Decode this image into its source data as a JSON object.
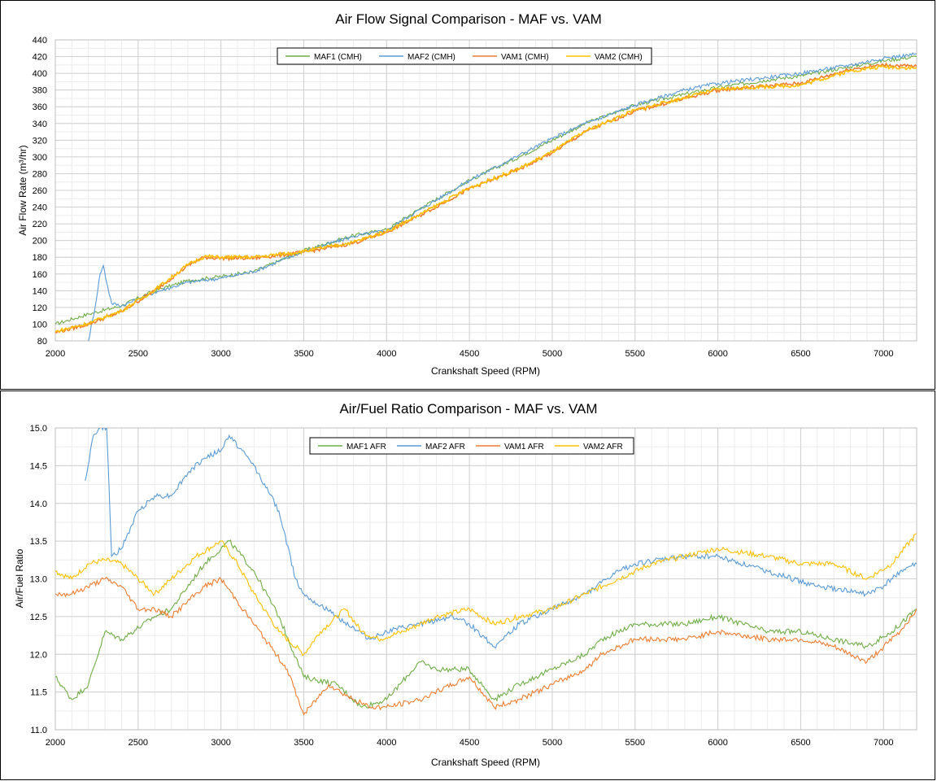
{
  "colors": {
    "MAF1": "#70ad47",
    "MAF2": "#5b9bd5",
    "VAM1": "#ed7d31",
    "VAM2": "#ffc000"
  },
  "chart_data": [
    {
      "type": "line",
      "title": "Air Flow Signal Comparison - MAF vs. VAM",
      "xlabel": "Crankshaft Speed (RPM)",
      "ylabel": "Air Flow Rate (m³/hr)",
      "xlim": [
        2000,
        7200
      ],
      "ylim": [
        80,
        440
      ],
      "x_ticks": [
        "2000",
        "2500",
        "3000",
        "3500",
        "4000",
        "4500",
        "5000",
        "5500",
        "6000",
        "6500",
        "7000"
      ],
      "y_ticks": [
        "80",
        "100",
        "120",
        "140",
        "160",
        "180",
        "200",
        "220",
        "240",
        "260",
        "280",
        "300",
        "320",
        "340",
        "360",
        "380",
        "400",
        "420",
        "440"
      ],
      "grid": true,
      "legend_position": "top-left inside",
      "series": [
        {
          "name": "MAF1 (CMH)",
          "color_key": "MAF1",
          "points": [
            [
              2000,
              100
            ],
            [
              2200,
              112
            ],
            [
              2400,
              122
            ],
            [
              2600,
              140
            ],
            [
              2800,
              152
            ],
            [
              3000,
              157
            ],
            [
              3200,
              163
            ],
            [
              3500,
              188
            ],
            [
              3800,
              206
            ],
            [
              4000,
              213
            ],
            [
              4200,
              238
            ],
            [
              4500,
              272
            ],
            [
              4800,
              300
            ],
            [
              5000,
              320
            ],
            [
              5200,
              340
            ],
            [
              5500,
              362
            ],
            [
              5800,
              375
            ],
            [
              6000,
              383
            ],
            [
              6300,
              392
            ],
            [
              6500,
              397
            ],
            [
              6800,
              408
            ],
            [
              7000,
              415
            ],
            [
              7200,
              420
            ]
          ]
        },
        {
          "name": "MAF2 (CMH)",
          "color_key": "MAF2",
          "points": [
            [
              2200,
              80
            ],
            [
              2240,
              120
            ],
            [
              2270,
              160
            ],
            [
              2290,
              170
            ],
            [
              2310,
              150
            ],
            [
              2340,
              125
            ],
            [
              2400,
              122
            ],
            [
              2600,
              138
            ],
            [
              2800,
              150
            ],
            [
              3000,
              155
            ],
            [
              3200,
              163
            ],
            [
              3500,
              187
            ],
            [
              3800,
              205
            ],
            [
              4000,
              212
            ],
            [
              4200,
              237
            ],
            [
              4500,
              272
            ],
            [
              4800,
              302
            ],
            [
              5000,
              322
            ],
            [
              5200,
              340
            ],
            [
              5500,
              362
            ],
            [
              5800,
              380
            ],
            [
              6000,
              388
            ],
            [
              6300,
              395
            ],
            [
              6500,
              400
            ],
            [
              6800,
              410
            ],
            [
              7000,
              418
            ],
            [
              7200,
              423
            ]
          ]
        },
        {
          "name": "VAM1 (CMH)",
          "color_key": "VAM1",
          "points": [
            [
              2000,
              90
            ],
            [
              2200,
              100
            ],
            [
              2400,
              115
            ],
            [
              2600,
              140
            ],
            [
              2800,
              170
            ],
            [
              2900,
              180
            ],
            [
              3000,
              179
            ],
            [
              3200,
              179
            ],
            [
              3500,
              186
            ],
            [
              3800,
              197
            ],
            [
              4000,
              210
            ],
            [
              4200,
              230
            ],
            [
              4500,
              262
            ],
            [
              4800,
              285
            ],
            [
              5000,
              305
            ],
            [
              5200,
              330
            ],
            [
              5500,
              355
            ],
            [
              5800,
              370
            ],
            [
              6000,
              380
            ],
            [
              6300,
              385
            ],
            [
              6500,
              388
            ],
            [
              6800,
              405
            ],
            [
              7000,
              410
            ],
            [
              7200,
              408
            ]
          ]
        },
        {
          "name": "VAM2 (CMH)",
          "color_key": "VAM2",
          "points": [
            [
              2000,
              91
            ],
            [
              2200,
              101
            ],
            [
              2400,
              116
            ],
            [
              2600,
              141
            ],
            [
              2800,
              171
            ],
            [
              2900,
              181
            ],
            [
              3000,
              180
            ],
            [
              3200,
              180
            ],
            [
              3500,
              187
            ],
            [
              3800,
              198
            ],
            [
              4000,
              211
            ],
            [
              4200,
              231
            ],
            [
              4500,
              263
            ],
            [
              4800,
              286
            ],
            [
              5000,
              306
            ],
            [
              5200,
              331
            ],
            [
              5500,
              356
            ],
            [
              5800,
              371
            ],
            [
              6000,
              381
            ],
            [
              6300,
              384
            ],
            [
              6500,
              386
            ],
            [
              6800,
              403
            ],
            [
              7000,
              408
            ],
            [
              7200,
              406
            ]
          ]
        }
      ]
    },
    {
      "type": "line",
      "title": "Air/Fuel Ratio Comparison - MAF vs. VAM",
      "xlabel": "Crankshaft Speed (RPM)",
      "ylabel": "Air/Fuel Ratio",
      "xlim": [
        2000,
        7200
      ],
      "ylim": [
        11.0,
        15.0
      ],
      "x_ticks": [
        "2000",
        "2500",
        "3000",
        "3500",
        "4000",
        "4500",
        "5000",
        "5500",
        "6000",
        "6500",
        "7000"
      ],
      "y_ticks": [
        "11.0",
        "11.5",
        "12.0",
        "12.5",
        "13.0",
        "13.5",
        "14.0",
        "14.5",
        "15.0"
      ],
      "grid": true,
      "legend_position": "top-center inside",
      "series": [
        {
          "name": "MAF1 AFR",
          "color_key": "MAF1",
          "points": [
            [
              2000,
              11.7
            ],
            [
              2100,
              11.4
            ],
            [
              2200,
              11.6
            ],
            [
              2300,
              12.3
            ],
            [
              2400,
              12.2
            ],
            [
              2600,
              12.5
            ],
            [
              2700,
              12.6
            ],
            [
              2900,
              13.2
            ],
            [
              3050,
              13.5
            ],
            [
              3200,
              13.1
            ],
            [
              3350,
              12.5
            ],
            [
              3500,
              11.7
            ],
            [
              3700,
              11.6
            ],
            [
              3850,
              11.3
            ],
            [
              4000,
              11.4
            ],
            [
              4200,
              11.9
            ],
            [
              4300,
              11.8
            ],
            [
              4500,
              11.8
            ],
            [
              4650,
              11.4
            ],
            [
              4800,
              11.6
            ],
            [
              5000,
              11.8
            ],
            [
              5200,
              12.0
            ],
            [
              5300,
              12.2
            ],
            [
              5500,
              12.4
            ],
            [
              5800,
              12.4
            ],
            [
              6000,
              12.5
            ],
            [
              6300,
              12.3
            ],
            [
              6500,
              12.3
            ],
            [
              6900,
              12.1
            ],
            [
              7050,
              12.3
            ],
            [
              7200,
              12.6
            ]
          ]
        },
        {
          "name": "MAF2 AFR",
          "color_key": "MAF2",
          "points": [
            [
              2180,
              14.3
            ],
            [
              2230,
              14.9
            ],
            [
              2270,
              15.0
            ],
            [
              2310,
              15.0
            ],
            [
              2340,
              13.3
            ],
            [
              2400,
              13.4
            ],
            [
              2500,
              13.9
            ],
            [
              2600,
              14.1
            ],
            [
              2700,
              14.1
            ],
            [
              2800,
              14.4
            ],
            [
              2900,
              14.6
            ],
            [
              3000,
              14.7
            ],
            [
              3050,
              14.9
            ],
            [
              3200,
              14.5
            ],
            [
              3350,
              13.9
            ],
            [
              3450,
              13.0
            ],
            [
              3500,
              12.8
            ],
            [
              3700,
              12.5
            ],
            [
              3900,
              12.2
            ],
            [
              4000,
              12.3
            ],
            [
              4200,
              12.4
            ],
            [
              4400,
              12.5
            ],
            [
              4500,
              12.4
            ],
            [
              4650,
              12.1
            ],
            [
              4800,
              12.4
            ],
            [
              5000,
              12.6
            ],
            [
              5200,
              12.8
            ],
            [
              5400,
              13.1
            ],
            [
              5500,
              13.2
            ],
            [
              5800,
              13.3
            ],
            [
              6000,
              13.3
            ],
            [
              6300,
              13.1
            ],
            [
              6600,
              12.9
            ],
            [
              6900,
              12.8
            ],
            [
              7000,
              12.9
            ],
            [
              7100,
              13.1
            ],
            [
              7200,
              13.2
            ]
          ]
        },
        {
          "name": "VAM1 AFR",
          "color_key": "VAM1",
          "points": [
            [
              2000,
              12.8
            ],
            [
              2100,
              12.8
            ],
            [
              2300,
              13.0
            ],
            [
              2400,
              12.9
            ],
            [
              2500,
              12.6
            ],
            [
              2600,
              12.6
            ],
            [
              2700,
              12.5
            ],
            [
              2900,
              12.9
            ],
            [
              3000,
              13.0
            ],
            [
              3100,
              12.7
            ],
            [
              3300,
              12.1
            ],
            [
              3400,
              11.8
            ],
            [
              3500,
              11.2
            ],
            [
              3650,
              11.6
            ],
            [
              3800,
              11.4
            ],
            [
              3900,
              11.3
            ],
            [
              4000,
              11.3
            ],
            [
              4200,
              11.4
            ],
            [
              4400,
              11.6
            ],
            [
              4500,
              11.7
            ],
            [
              4650,
              11.3
            ],
            [
              4800,
              11.4
            ],
            [
              5000,
              11.6
            ],
            [
              5200,
              11.8
            ],
            [
              5300,
              12.0
            ],
            [
              5500,
              12.2
            ],
            [
              5800,
              12.2
            ],
            [
              6000,
              12.3
            ],
            [
              6300,
              12.2
            ],
            [
              6500,
              12.2
            ],
            [
              6700,
              12.1
            ],
            [
              6900,
              11.9
            ],
            [
              7000,
              12.1
            ],
            [
              7100,
              12.3
            ],
            [
              7200,
              12.6
            ]
          ]
        },
        {
          "name": "VAM2 AFR",
          "color_key": "VAM2",
          "points": [
            [
              2000,
              13.1
            ],
            [
              2100,
              13.0
            ],
            [
              2200,
              13.2
            ],
            [
              2300,
              13.25
            ],
            [
              2400,
              13.2
            ],
            [
              2500,
              13.0
            ],
            [
              2600,
              12.8
            ],
            [
              2700,
              13.0
            ],
            [
              2850,
              13.3
            ],
            [
              3000,
              13.5
            ],
            [
              3100,
              13.2
            ],
            [
              3200,
              12.8
            ],
            [
              3350,
              12.3
            ],
            [
              3500,
              12.0
            ],
            [
              3600,
              12.3
            ],
            [
              3750,
              12.6
            ],
            [
              3850,
              12.3
            ],
            [
              3950,
              12.2
            ],
            [
              4100,
              12.3
            ],
            [
              4300,
              12.5
            ],
            [
              4500,
              12.6
            ],
            [
              4650,
              12.4
            ],
            [
              4800,
              12.5
            ],
            [
              5000,
              12.6
            ],
            [
              5200,
              12.8
            ],
            [
              5400,
              13.0
            ],
            [
              5600,
              13.2
            ],
            [
              5800,
              13.3
            ],
            [
              6000,
              13.4
            ],
            [
              6300,
              13.3
            ],
            [
              6500,
              13.2
            ],
            [
              6700,
              13.2
            ],
            [
              6900,
              13.0
            ],
            [
              7050,
              13.2
            ],
            [
              7200,
              13.6
            ]
          ]
        }
      ]
    }
  ]
}
